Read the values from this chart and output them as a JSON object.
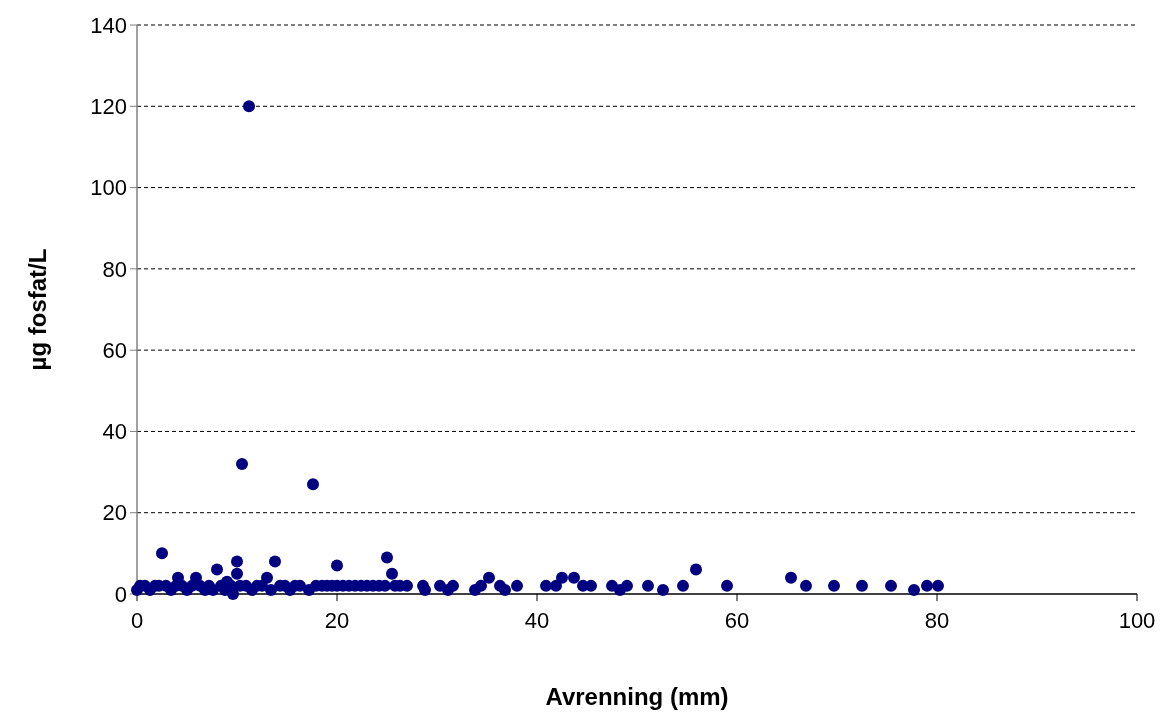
{
  "chart_data": {
    "type": "scatter",
    "xlabel": "Avrenning (mm)",
    "ylabel": "µg fosfat/L",
    "xlim": [
      0,
      100
    ],
    "xticks": [
      0,
      20,
      40,
      60,
      80,
      100
    ],
    "ylim": [
      0,
      140
    ],
    "yticks": [
      0,
      20,
      40,
      60,
      80,
      100,
      120,
      140
    ],
    "grid": "y",
    "marker": "circle",
    "series": [
      {
        "color": "#000080",
        "x": [
          0,
          0.3,
          0.8,
          1.3,
          1.8,
          2.2,
          2.5,
          2.9,
          3.4,
          3.9,
          4.1,
          4.5,
          5.0,
          5.5,
          5.9,
          6.3,
          6.8,
          7.2,
          7.6,
          8.0,
          8.4,
          8.8,
          9.0,
          9.4,
          9.6,
          10.0,
          10.0,
          10.3,
          10.5,
          10.9,
          11.2,
          11.5,
          12.0,
          12.5,
          13.0,
          13.4,
          13.8,
          14.3,
          14.8,
          15.3,
          15.8,
          16.3,
          17.2,
          17.6,
          17.9,
          18.5,
          19.0,
          19.5,
          20.0,
          20.0,
          20.6,
          21.2,
          21.8,
          22.4,
          23.0,
          23.6,
          24.2,
          24.8,
          25.0,
          25.5,
          25.8,
          26.3,
          27.0,
          28.6,
          28.8,
          30.3,
          31.1,
          31.6,
          33.8,
          34.4,
          35.2,
          36.3,
          36.8,
          38.0,
          40.9,
          41.9,
          42.5,
          43.7,
          44.6,
          45.4,
          47.5,
          48.3,
          49.0,
          51.1,
          52.6,
          54.6,
          55.9,
          59.0,
          65.4,
          66.9,
          69.7,
          72.5,
          75.4,
          77.7,
          79.0,
          80.1
        ],
        "values": [
          1,
          2,
          2,
          1,
          2,
          2,
          10,
          2,
          1,
          2,
          4,
          2,
          1,
          2,
          4,
          2,
          1,
          2,
          1,
          6,
          2,
          1,
          3,
          2,
          0,
          5,
          8,
          2,
          32,
          2,
          120,
          1,
          2,
          2,
          4,
          1,
          8,
          2,
          2,
          1,
          2,
          2,
          1,
          27,
          2,
          2,
          2,
          2,
          7,
          2,
          2,
          2,
          2,
          2,
          2,
          2,
          2,
          2,
          9,
          5,
          2,
          2,
          2,
          2,
          1,
          2,
          1,
          2,
          1,
          2,
          4,
          2,
          1,
          2,
          2,
          2,
          4,
          4,
          2,
          2,
          2,
          1,
          2,
          2,
          1,
          2,
          6,
          2,
          4,
          2,
          2,
          2,
          2,
          1,
          2,
          2
        ]
      }
    ]
  }
}
